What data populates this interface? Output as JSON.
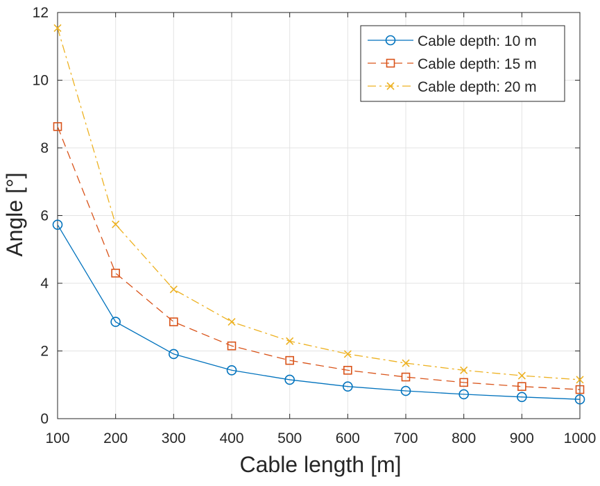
{
  "chart_data": {
    "type": "line",
    "title": "",
    "xlabel": "Cable length [m]",
    "ylabel": "Angle [°]",
    "xlim": [
      100,
      1000
    ],
    "ylim": [
      0,
      12
    ],
    "xticks": [
      100,
      200,
      300,
      400,
      500,
      600,
      700,
      800,
      900,
      1000
    ],
    "yticks": [
      0,
      2,
      4,
      6,
      8,
      10,
      12
    ],
    "grid": true,
    "legend_position": "top-right",
    "x": [
      100,
      200,
      300,
      400,
      500,
      600,
      700,
      800,
      900,
      1000
    ],
    "series": [
      {
        "name": "Cable depth: 10 m",
        "values": [
          5.73,
          2.86,
          1.91,
          1.43,
          1.15,
          0.95,
          0.82,
          0.72,
          0.64,
          0.57
        ],
        "color": "#0072BD",
        "line_style": "solid",
        "marker": "circle"
      },
      {
        "name": "Cable depth: 15 m",
        "values": [
          8.63,
          4.3,
          2.86,
          2.15,
          1.72,
          1.43,
          1.23,
          1.07,
          0.95,
          0.86
        ],
        "color": "#D95319",
        "line_style": "dashed",
        "marker": "square"
      },
      {
        "name": "Cable depth: 20 m",
        "values": [
          11.54,
          5.74,
          3.82,
          2.86,
          2.29,
          1.91,
          1.64,
          1.43,
          1.27,
          1.15
        ],
        "color": "#EDB120",
        "line_style": "dash-dot",
        "marker": "x"
      }
    ]
  }
}
